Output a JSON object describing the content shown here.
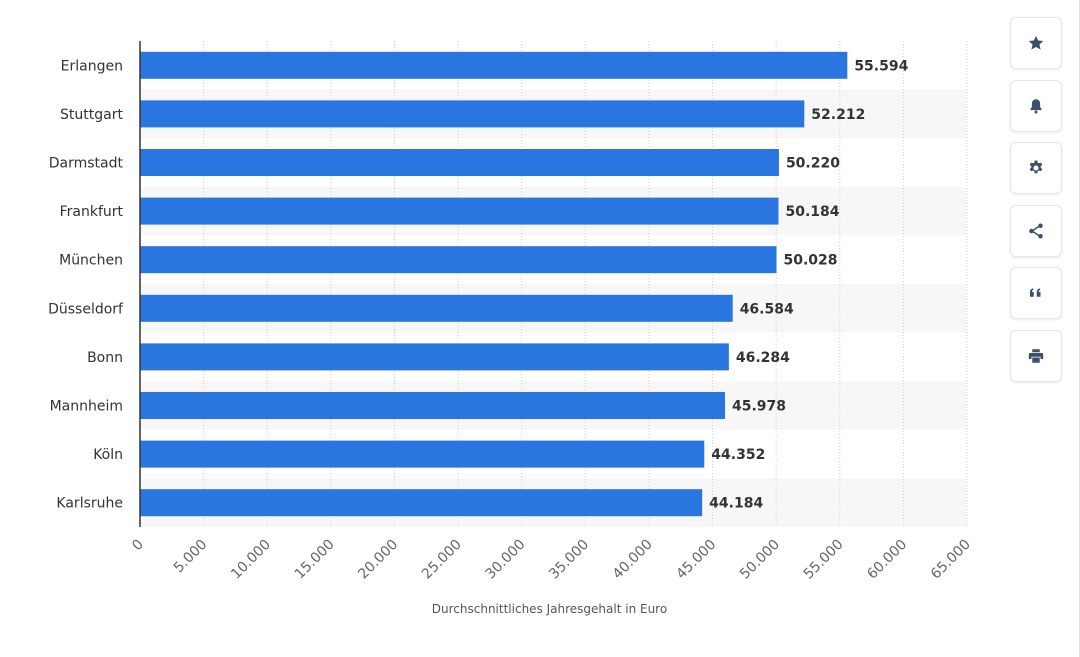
{
  "chart_data": {
    "type": "bar",
    "orientation": "horizontal",
    "categories": [
      "Erlangen",
      "Stuttgart",
      "Darmstadt",
      "Frankfurt",
      "München",
      "Düsseldorf",
      "Bonn",
      "Mannheim",
      "Köln",
      "Karlsruhe"
    ],
    "values": [
      55594,
      52212,
      50220,
      50184,
      50028,
      46584,
      46284,
      45978,
      44352,
      44184
    ],
    "value_labels": [
      "55.594",
      "52.212",
      "50.220",
      "50.184",
      "50.028",
      "46.584",
      "46.284",
      "45.978",
      "44.352",
      "44.184"
    ],
    "xlabel": "Durchschnittliches Jahresgehalt in Euro",
    "ylabel": "",
    "xlim": [
      0,
      65000
    ],
    "xticks": [
      0,
      5000,
      10000,
      15000,
      20000,
      25000,
      30000,
      35000,
      40000,
      45000,
      50000,
      55000,
      60000,
      65000
    ],
    "xtick_labels": [
      "0",
      "5.000",
      "10.000",
      "15.000",
      "20.000",
      "25.000",
      "30.000",
      "35.000",
      "40.000",
      "45.000",
      "50.000",
      "55.000",
      "60.000",
      "65.000"
    ],
    "grid": true,
    "bar_color": "#2976e0"
  },
  "toolbar": {
    "buttons": [
      {
        "icon": "star-icon",
        "name": "favorite-button"
      },
      {
        "icon": "bell-icon",
        "name": "notification-button"
      },
      {
        "icon": "gear-icon",
        "name": "settings-button"
      },
      {
        "icon": "share-icon",
        "name": "share-button"
      },
      {
        "icon": "quote-icon",
        "name": "cite-button"
      },
      {
        "icon": "print-icon",
        "name": "print-button"
      }
    ],
    "icon_color": "#3d4f6b"
  }
}
